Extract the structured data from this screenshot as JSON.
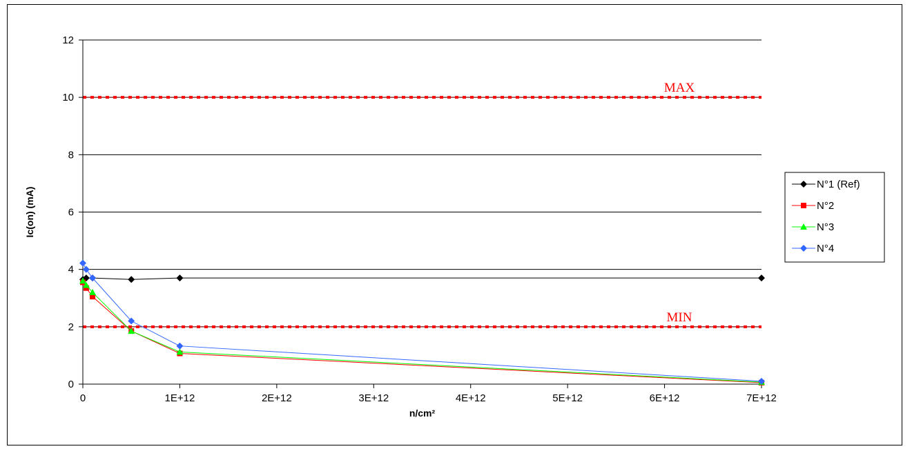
{
  "chart_data": {
    "type": "line",
    "title": "",
    "xlabel": "n/cm²",
    "ylabel": "Ic(on) (mA)",
    "xlim": [
      0,
      7000000000000.0
    ],
    "ylim": [
      0,
      12
    ],
    "x_ticks": [
      0,
      1000000000000.0,
      2000000000000.0,
      3000000000000.0,
      4000000000000.0,
      5000000000000.0,
      6000000000000.0,
      7000000000000.0
    ],
    "x_tick_labels": [
      "0",
      "1E+12",
      "2E+12",
      "3E+12",
      "4E+12",
      "5E+12",
      "6E+12",
      "7E+12"
    ],
    "y_ticks": [
      0,
      2,
      4,
      6,
      8,
      10,
      12
    ],
    "y_tick_labels": [
      "0",
      "2",
      "4",
      "6",
      "8",
      "10",
      "12"
    ],
    "grid": "horizontal",
    "legend_position": "right",
    "x": [
      0,
      35000000000.0,
      100000000000.0,
      500000000000.0,
      1000000000000.0,
      7000000000000.0
    ],
    "series": [
      {
        "name": "N°1 (Ref)",
        "color": "#000000",
        "marker": "diamond",
        "values": [
          3.65,
          3.7,
          3.7,
          3.65,
          3.7,
          3.7
        ]
      },
      {
        "name": "N°2",
        "color": "#ff0000",
        "marker": "square",
        "values": [
          3.55,
          3.35,
          3.05,
          1.85,
          1.07,
          0.05
        ]
      },
      {
        "name": "N°3",
        "color": "#00ff00",
        "marker": "triangle",
        "values": [
          3.6,
          3.45,
          3.2,
          1.85,
          1.12,
          0.07
        ]
      },
      {
        "name": "N°4",
        "color": "#3366ff",
        "marker": "diamond",
        "values": [
          4.22,
          4.0,
          3.7,
          2.2,
          1.33,
          0.1
        ]
      }
    ],
    "reference_lines": [
      {
        "label": "MAX",
        "y": 10,
        "color": "#ff0000",
        "line_color": "#800000"
      },
      {
        "label": "MIN",
        "y": 2,
        "color": "#ff0000",
        "line_color": "#800000"
      }
    ]
  }
}
